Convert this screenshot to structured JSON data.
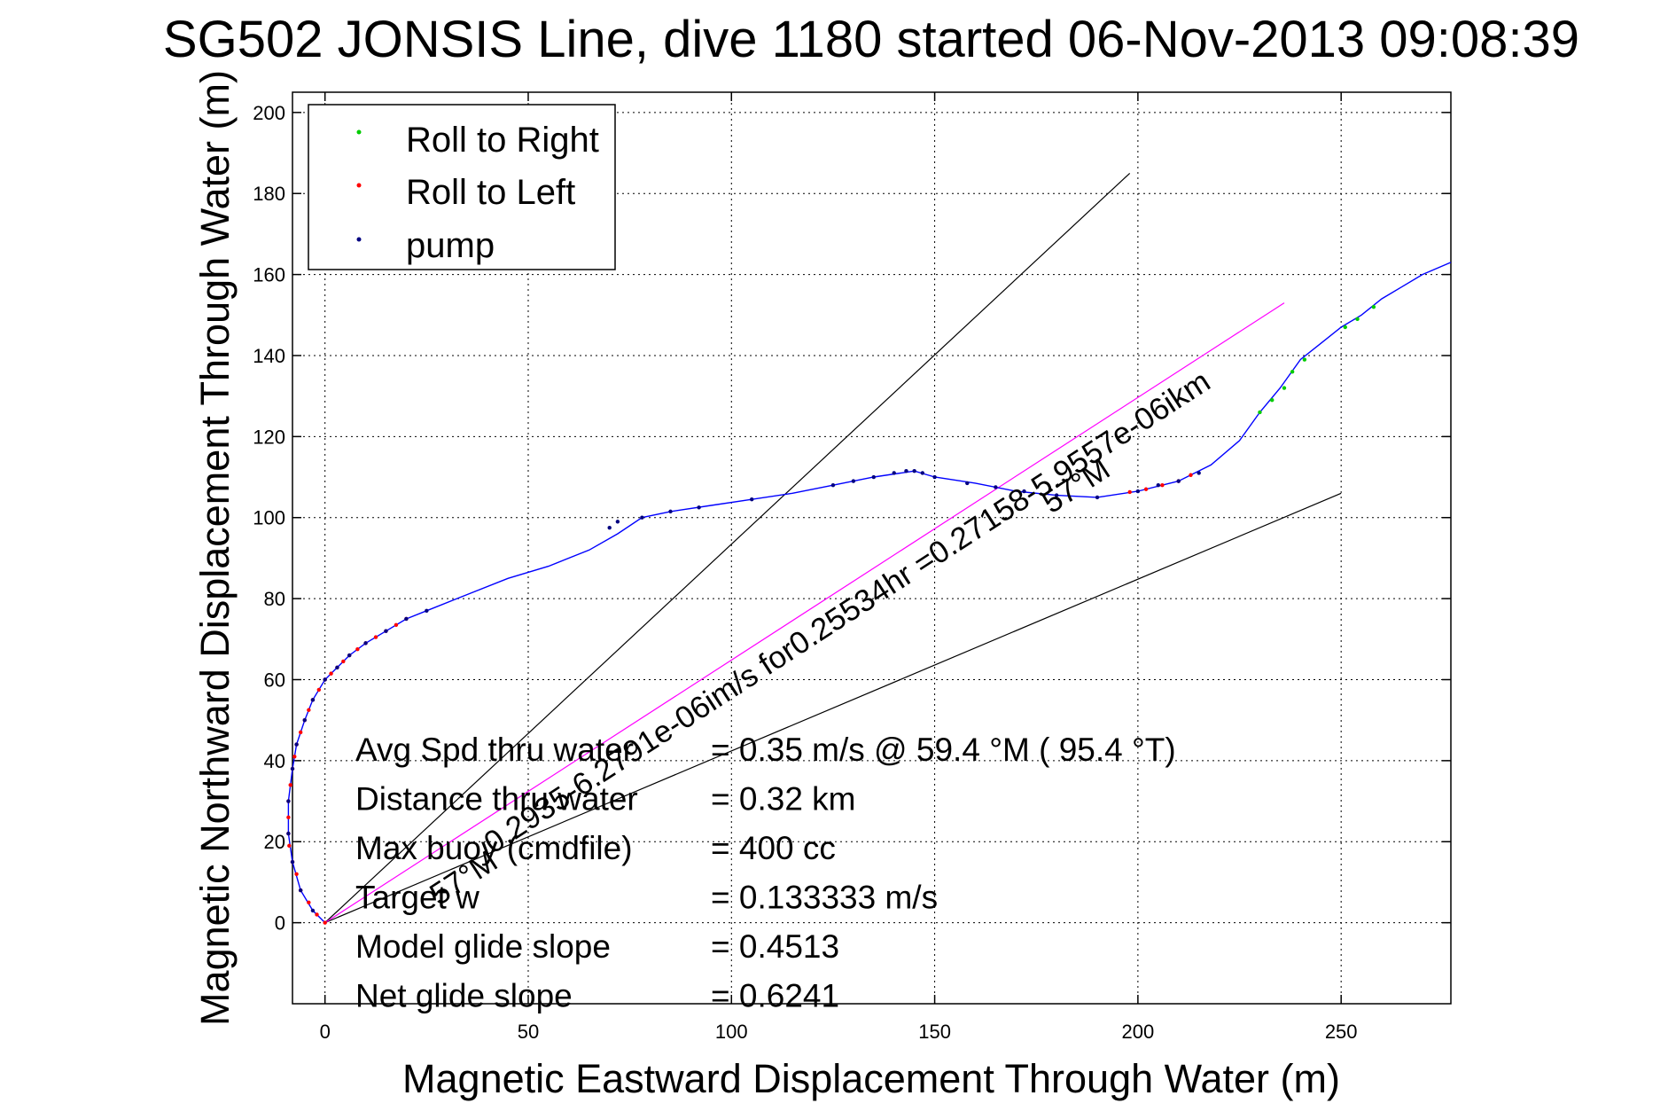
{
  "chart_data": {
    "type": "line",
    "title": "SG502 JONSIS Line, dive 1180 started 06-Nov-2013 09:08:39",
    "xlabel": "Magnetic Eastward Displacement Through Water (m)",
    "ylabel": "Magnetic Northward Displacement Through Water (m)",
    "xlim": [
      -8,
      277
    ],
    "ylim": [
      -20,
      205
    ],
    "xticks": [
      0,
      50,
      100,
      150,
      200,
      250
    ],
    "yticks": [
      0,
      20,
      40,
      60,
      80,
      100,
      120,
      140,
      160,
      180,
      200
    ],
    "grid": true,
    "legend_position": "top-left",
    "legend": [
      {
        "label": "Roll to Right",
        "color": "#00cc00"
      },
      {
        "label": "Roll to Left",
        "color": "#ff0000"
      },
      {
        "label": "pump",
        "color": "#000080"
      }
    ],
    "track": {
      "name": "glider track",
      "color": "#0000ff",
      "points": [
        [
          0,
          0
        ],
        [
          -3,
          3
        ],
        [
          -6,
          8
        ],
        [
          -8,
          15
        ],
        [
          -9,
          22
        ],
        [
          -9,
          30
        ],
        [
          -8,
          38
        ],
        [
          -7,
          44
        ],
        [
          -5,
          50
        ],
        [
          -3,
          55
        ],
        [
          0,
          60
        ],
        [
          3,
          63
        ],
        [
          6,
          66
        ],
        [
          10,
          69
        ],
        [
          15,
          72
        ],
        [
          20,
          75
        ],
        [
          25,
          77
        ],
        [
          35,
          81
        ],
        [
          45,
          85
        ],
        [
          55,
          88
        ],
        [
          65,
          92
        ],
        [
          72,
          96
        ],
        [
          78,
          100
        ],
        [
          85,
          101.5
        ],
        [
          95,
          103
        ],
        [
          105,
          104.5
        ],
        [
          115,
          106
        ],
        [
          125,
          108
        ],
        [
          135,
          110
        ],
        [
          145,
          111.5
        ],
        [
          150,
          110
        ],
        [
          160,
          108.5
        ],
        [
          170,
          106.5
        ],
        [
          180,
          105.5
        ],
        [
          190,
          105
        ],
        [
          200,
          106.5
        ],
        [
          210,
          109
        ],
        [
          218,
          113
        ],
        [
          225,
          119
        ],
        [
          230,
          126
        ],
        [
          235,
          132
        ],
        [
          240,
          139
        ],
        [
          245,
          143
        ],
        [
          250,
          147
        ],
        [
          255,
          150
        ],
        [
          260,
          154
        ],
        [
          265,
          157
        ],
        [
          270,
          160
        ],
        [
          277,
          163
        ]
      ],
      "roll_right": [
        [
          230,
          126
        ],
        [
          233,
          129
        ],
        [
          236,
          132
        ],
        [
          238,
          136
        ],
        [
          241,
          139
        ],
        [
          251,
          147
        ],
        [
          254,
          149
        ],
        [
          258,
          152
        ]
      ],
      "roll_left": [
        [
          0,
          0
        ],
        [
          -2,
          2
        ],
        [
          -4,
          5
        ],
        [
          -6,
          8
        ],
        [
          -7,
          12
        ],
        [
          -8,
          15
        ],
        [
          -8.8,
          19
        ],
        [
          -9,
          22
        ],
        [
          -9,
          26
        ],
        [
          -9,
          30
        ],
        [
          -8.5,
          34
        ],
        [
          -8,
          38
        ],
        [
          -7.5,
          41
        ],
        [
          -7,
          44
        ],
        [
          -6,
          47
        ],
        [
          -5,
          50
        ],
        [
          -4,
          52.5
        ],
        [
          -3,
          55
        ],
        [
          -1.5,
          57.5
        ],
        [
          0,
          60
        ],
        [
          1.5,
          61.5
        ],
        [
          3,
          63
        ],
        [
          4.5,
          64.5
        ],
        [
          6,
          66
        ],
        [
          8,
          67.5
        ],
        [
          10,
          69
        ],
        [
          12.5,
          70.5
        ],
        [
          15,
          72
        ],
        [
          17.5,
          73.5
        ],
        [
          20,
          75
        ],
        [
          198,
          106.3
        ],
        [
          202,
          107
        ],
        [
          206,
          108
        ],
        [
          210,
          109
        ],
        [
          213,
          110.5
        ]
      ],
      "pump": [
        [
          -3,
          3
        ],
        [
          -6,
          8
        ],
        [
          -8,
          15
        ],
        [
          -9,
          22
        ],
        [
          -9,
          30
        ],
        [
          -8,
          38
        ],
        [
          -7,
          44
        ],
        [
          -5,
          50
        ],
        [
          -3,
          55
        ],
        [
          0,
          60
        ],
        [
          3,
          63
        ],
        [
          6,
          66
        ],
        [
          10,
          69
        ],
        [
          15,
          72
        ],
        [
          20,
          75
        ],
        [
          25,
          77
        ],
        [
          70,
          97.5
        ],
        [
          72,
          99
        ],
        [
          78,
          100
        ],
        [
          85,
          101.5
        ],
        [
          92,
          102.5
        ],
        [
          105,
          104.5
        ],
        [
          125,
          108
        ],
        [
          130,
          109
        ],
        [
          135,
          110
        ],
        [
          140,
          111
        ],
        [
          143,
          111.5
        ],
        [
          145,
          111.5
        ],
        [
          147,
          111
        ],
        [
          150,
          110
        ],
        [
          158,
          108.5
        ],
        [
          165,
          107.5
        ],
        [
          172,
          106.5
        ],
        [
          180,
          105.5
        ],
        [
          190,
          105
        ],
        [
          200,
          106.5
        ],
        [
          205,
          108
        ],
        [
          210,
          109
        ],
        [
          215,
          111
        ]
      ]
    },
    "reference_lines": [
      {
        "from": [
          0,
          0
        ],
        "to": [
          198,
          185
        ],
        "color": "#000000"
      },
      {
        "from": [
          0,
          0
        ],
        "to": [
          250,
          106
        ],
        "color": "#000000"
      },
      {
        "from": [
          0,
          0
        ],
        "to": [
          236,
          153
        ],
        "color": "#ff00ff"
      }
    ],
    "annotations": {
      "current_label": "0.2935-6.2791e-06im/s for0.25534hr =0.27158-5.9557e-06ikm",
      "heading_label_1": "57°M",
      "heading_label_2": "57°M"
    },
    "stats": [
      {
        "label": "Avg Spd thru water",
        "value": "=  0.35 m/s @  59.4 °M ( 95.4 °T)"
      },
      {
        "label": "Distance thru water",
        "value": "=  0.32 km"
      },
      {
        "label": "Max buoy (cmdfile)",
        "value": "= 400 cc"
      },
      {
        "label": "Target w",
        "value": "= 0.133333 m/s"
      },
      {
        "label": "Model glide slope",
        "value": "= 0.4513"
      },
      {
        "label": "Net glide slope",
        "value": "= 0.6241"
      }
    ]
  }
}
